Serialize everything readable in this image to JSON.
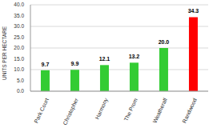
{
  "chart_data": {
    "type": "bar",
    "y_label": "UNITS PER HECTARE",
    "categories": [
      "Park Court",
      "Christopher",
      "Harmony",
      "The Prom",
      "Weatherall",
      "Randwood"
    ],
    "values": [
      9.7,
      9.9,
      12.1,
      13.2,
      20.0,
      34.3
    ],
    "value_labels": [
      "9.7",
      "9.9",
      "12.1",
      "13.2",
      "20.0",
      "34.3"
    ],
    "colors": [
      "#33cc33",
      "#33cc33",
      "#33cc33",
      "#33cc33",
      "#33cc33",
      "#ff0000"
    ],
    "ylim": [
      0,
      40
    ],
    "yticks": [
      {
        "value": 0,
        "label": "0.0"
      },
      {
        "value": 5,
        "label": "5.0"
      },
      {
        "value": 10,
        "label": "10.0"
      },
      {
        "value": 15,
        "label": "15.0"
      },
      {
        "value": 20,
        "label": "20.0"
      },
      {
        "value": 25,
        "label": "25.0"
      },
      {
        "value": 30,
        "label": "30.0"
      },
      {
        "value": 35,
        "label": "35.0"
      },
      {
        "value": 40,
        "label": "40.0"
      }
    ],
    "grid": true,
    "data_labels": true
  }
}
